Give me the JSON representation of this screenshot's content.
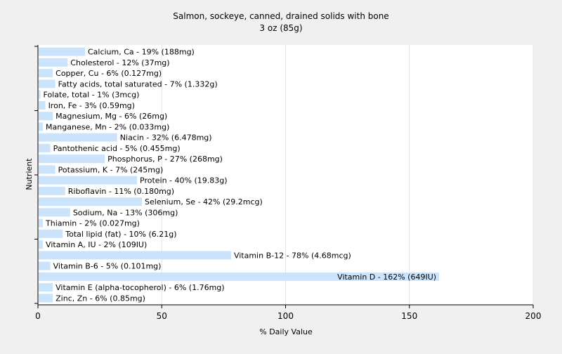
{
  "chart_data": {
    "type": "bar",
    "orientation": "horizontal",
    "title": "Salmon, sockeye, canned, drained solids with bone",
    "subtitle": "3 oz (85g)",
    "xlabel": "% Daily Value",
    "ylabel": "Nutrient",
    "xlim": [
      0,
      200
    ],
    "xticks": [
      0,
      50,
      100,
      150,
      200
    ],
    "grid": true,
    "legend": "none",
    "bar_color": "#cce4fb",
    "categories": [
      "Calcium, Ca",
      "Cholesterol",
      "Copper, Cu",
      "Fatty acids, total saturated",
      "Folate, total",
      "Iron, Fe",
      "Magnesium, Mg",
      "Manganese, Mn",
      "Niacin",
      "Pantothenic acid",
      "Phosphorus, P",
      "Potassium, K",
      "Protein",
      "Riboflavin",
      "Selenium, Se",
      "Sodium, Na",
      "Thiamin",
      "Total lipid (fat)",
      "Vitamin A, IU",
      "Vitamin B-12",
      "Vitamin B-6",
      "Vitamin D",
      "Vitamin E (alpha-tocopherol)",
      "Zinc, Zn"
    ],
    "values": [
      19,
      12,
      6,
      7,
      1,
      3,
      6,
      2,
      32,
      5,
      27,
      7,
      40,
      11,
      42,
      13,
      2,
      10,
      2,
      78,
      5,
      162,
      6,
      6
    ],
    "labels": [
      "Calcium, Ca - 19% (188mg)",
      "Cholesterol - 12% (37mg)",
      "Copper, Cu - 6% (0.127mg)",
      "Fatty acids, total saturated - 7% (1.332g)",
      "Folate, total - 1% (3mcg)",
      "Iron, Fe - 3% (0.59mg)",
      "Magnesium, Mg - 6% (26mg)",
      "Manganese, Mn - 2% (0.033mg)",
      "Niacin - 32% (6.478mg)",
      "Pantothenic acid - 5% (0.455mg)",
      "Phosphorus, P - 27% (268mg)",
      "Potassium, K - 7% (245mg)",
      "Protein - 40% (19.83g)",
      "Riboflavin - 11% (0.180mg)",
      "Selenium, Se - 42% (29.2mcg)",
      "Sodium, Na - 13% (306mg)",
      "Thiamin - 2% (0.027mg)",
      "Total lipid (fat) - 10% (6.21g)",
      "Vitamin A, IU - 2% (109IU)",
      "Vitamin B-12 - 78% (4.68mcg)",
      "Vitamin B-6 - 5% (0.101mg)",
      "Vitamin D - 162% (649IU)",
      "Vitamin E (alpha-tocopherol) - 6% (1.76mg)",
      "Zinc, Zn - 6% (0.85mg)"
    ]
  }
}
